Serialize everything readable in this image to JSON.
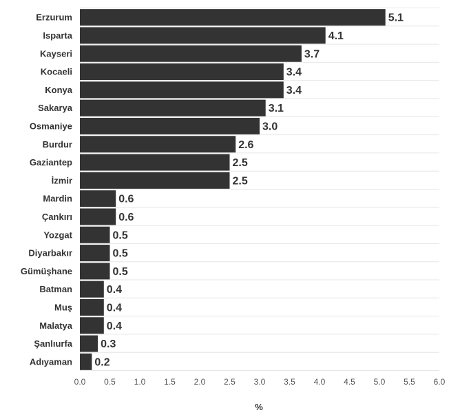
{
  "chart_data": {
    "type": "bar",
    "orientation": "horizontal",
    "categories": [
      "Erzurum",
      "Isparta",
      "Kayseri",
      "Kocaeli",
      "Konya",
      "Sakarya",
      "Osmaniye",
      "Burdur",
      "Gaziantep",
      "İzmir",
      "Mardin",
      "Çankırı",
      "Yozgat",
      "Diyarbakır",
      "Gümüşhane",
      "Batman",
      "Muş",
      "Malatya",
      "Şanlıurfa",
      "Adıyaman"
    ],
    "values": [
      5.1,
      4.1,
      3.7,
      3.4,
      3.4,
      3.1,
      3.0,
      2.6,
      2.5,
      2.5,
      0.6,
      0.6,
      0.5,
      0.5,
      0.5,
      0.4,
      0.4,
      0.4,
      0.3,
      0.2
    ],
    "value_labels": [
      "5.1",
      "4.1",
      "3.7",
      "3.4",
      "3.4",
      "3.1",
      "3.0",
      "2.6",
      "2.5",
      "2.5",
      "0.6",
      "0.6",
      "0.5",
      "0.5",
      "0.5",
      "0.4",
      "0.4",
      "0.4",
      "0.3",
      "0.2"
    ],
    "x_ticks": [
      "0.0",
      "0.5",
      "1.0",
      "1.5",
      "2.0",
      "2.5",
      "3.0",
      "3.5",
      "4.0",
      "4.5",
      "5.0",
      "5.5",
      "6.0"
    ],
    "xlim": [
      0,
      6
    ],
    "xlabel": "%",
    "grid": true,
    "bar_color": "#333333",
    "grid_color": "#e6e6e6"
  }
}
